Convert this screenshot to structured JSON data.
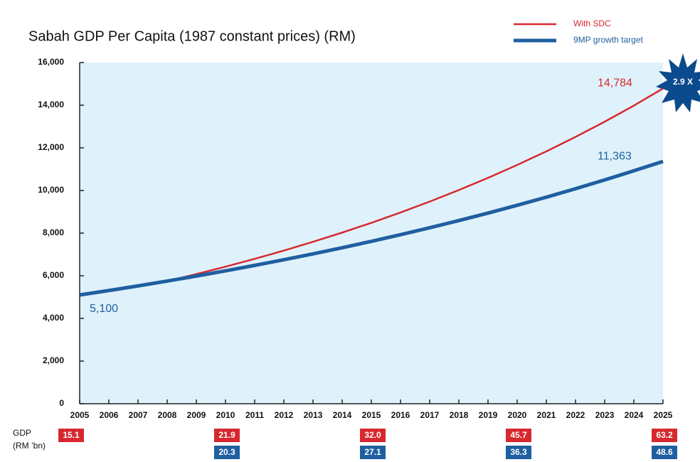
{
  "chart_data": {
    "type": "line",
    "title": "Sabah GDP Per Capita (1987 constant prices) (RM)",
    "x": [
      2005,
      2006,
      2007,
      2008,
      2009,
      2010,
      2011,
      2012,
      2013,
      2014,
      2015,
      2016,
      2017,
      2018,
      2019,
      2020,
      2021,
      2022,
      2023,
      2024,
      2025
    ],
    "series": [
      {
        "name": "With SDC",
        "color": "#d7282f",
        "values": [
          null,
          null,
          null,
          5752,
          6080,
          6427,
          6794,
          7182,
          7592,
          8025,
          8483,
          8967,
          9479,
          10020,
          10592,
          11196,
          11835,
          12511,
          13225,
          13980,
          14784
        ],
        "value_labels": [
          null,
          null,
          null,
          null,
          null,
          null,
          null,
          null,
          null,
          null,
          null,
          null,
          null,
          null,
          null,
          null,
          null,
          null,
          null,
          null,
          "14,784"
        ]
      },
      {
        "name": "9MP growth target",
        "color": "#1f5fa0",
        "values": [
          5100,
          5309,
          5526,
          5752,
          5987,
          6232,
          6487,
          6752,
          7028,
          7316,
          7615,
          7927,
          8251,
          8589,
          8940,
          9306,
          9686,
          10083,
          10495,
          10924,
          11363
        ],
        "value_labels": [
          "5,100",
          null,
          null,
          null,
          null,
          null,
          null,
          null,
          null,
          null,
          null,
          null,
          null,
          null,
          null,
          null,
          null,
          null,
          null,
          null,
          "11,363"
        ]
      }
    ],
    "xlim": [
      2005,
      2025
    ],
    "xticks": [
      2005,
      2006,
      2007,
      2008,
      2009,
      2010,
      2011,
      2012,
      2013,
      2014,
      2015,
      2016,
      2017,
      2018,
      2019,
      2020,
      2021,
      2022,
      2023,
      2024,
      2025
    ],
    "ylim": [
      0,
      16000
    ],
    "yticks": [
      0,
      {
        "value": 2000,
        "label": "2,000"
      },
      {
        "value": 4000,
        "label": "4,000"
      },
      {
        "value": 6000,
        "label": "6,000"
      },
      {
        "value": 8000,
        "label": "8,000"
      },
      {
        "value": 10000,
        "label": "10,000"
      },
      {
        "value": 12000,
        "label": "12,000"
      },
      {
        "value": 14000,
        "label": "14,000"
      },
      {
        "value": 16000,
        "label": "16,000"
      }
    ],
    "annotation": "2.9 X",
    "gdp_table": {
      "label": "GDP",
      "unit": "(RM ’bn)",
      "rows": [
        {
          "color": "#d7282f",
          "x": [
            2005,
            2010,
            2015,
            2020,
            2025
          ],
          "labels": [
            "15.1",
            "21.9",
            "32.0",
            "45.7",
            "63.2"
          ]
        },
        {
          "color": "#1f5fa0",
          "x": [
            2010,
            2015,
            2020,
            2025
          ],
          "labels": [
            "20.3",
            "27.1",
            "36.3",
            "48.6"
          ]
        }
      ]
    }
  }
}
